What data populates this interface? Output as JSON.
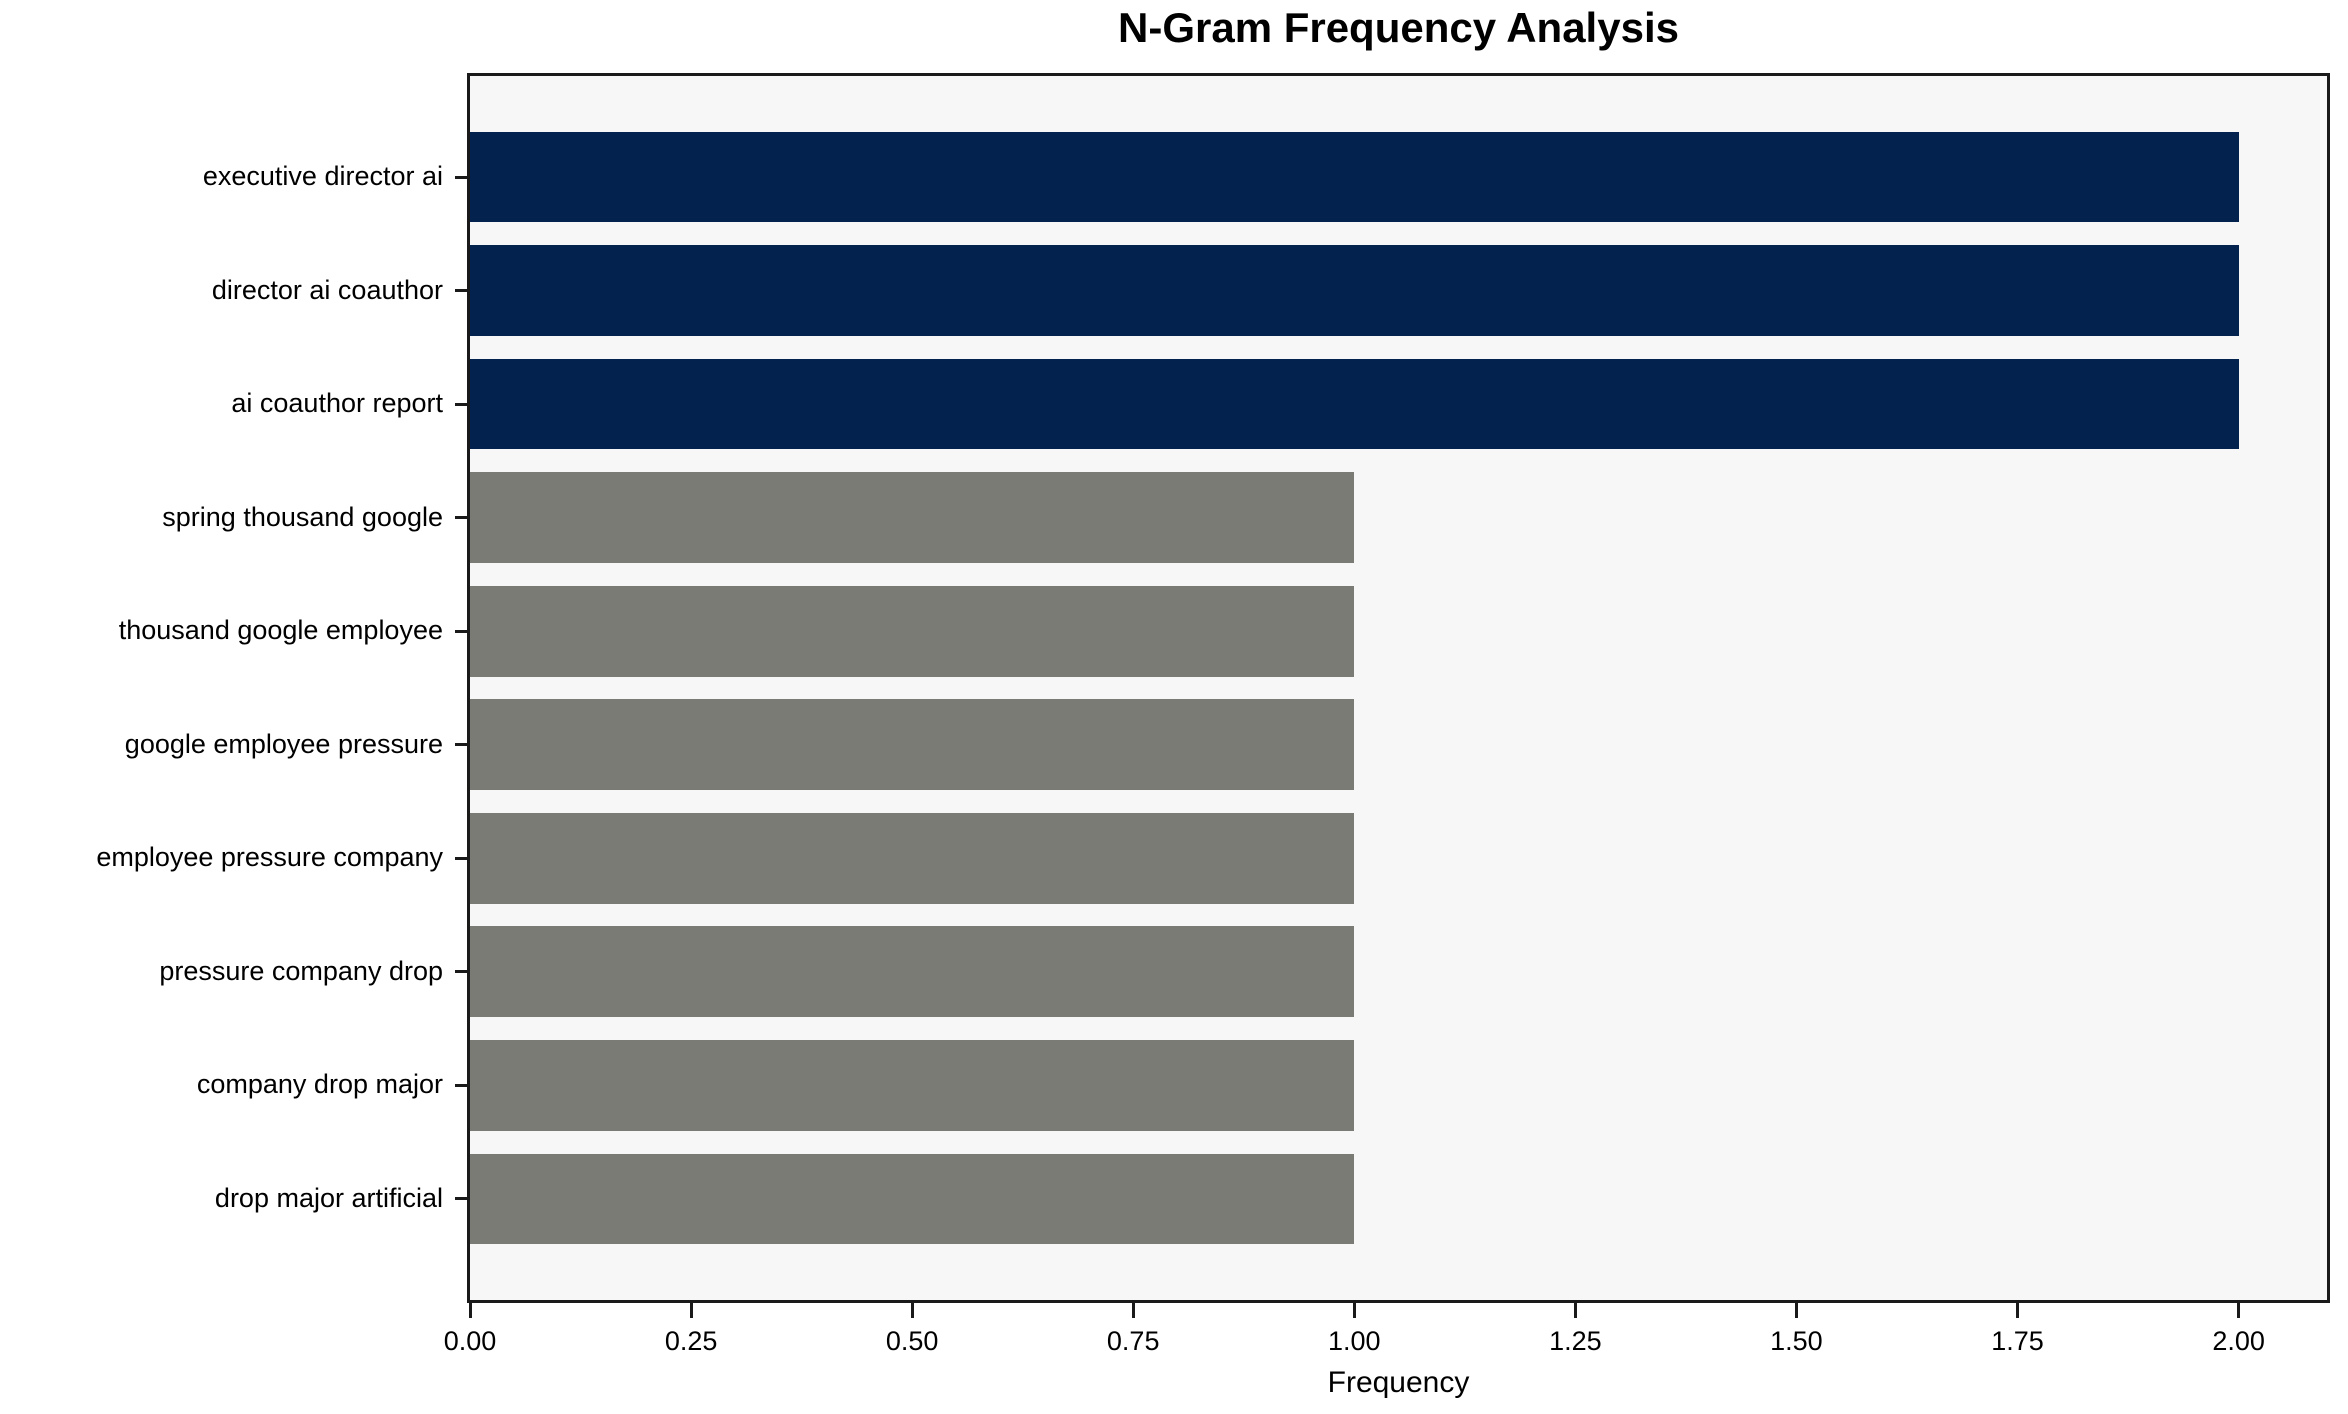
{
  "chart_data": {
    "type": "bar",
    "orientation": "horizontal",
    "title": "N-Gram Frequency Analysis",
    "xlabel": "Frequency",
    "ylabel": "",
    "categories": [
      "executive director ai",
      "director ai coauthor",
      "ai coauthor report",
      "spring thousand google",
      "thousand google employee",
      "google employee pressure",
      "employee pressure company",
      "pressure company drop",
      "company drop major",
      "drop major artificial"
    ],
    "values": [
      2,
      2,
      2,
      1,
      1,
      1,
      1,
      1,
      1,
      1
    ],
    "bar_colors": [
      "#03234e",
      "#03234e",
      "#03234e",
      "#7b7b76",
      "#7b7b76",
      "#7b7b76",
      "#7b7b76",
      "#7b7b76",
      "#7b7b76",
      "#7b7b76"
    ],
    "xlim": [
      0,
      2.1
    ],
    "xticks": [
      0,
      0.25,
      0.5,
      0.75,
      1.0,
      1.25,
      1.5,
      1.75,
      2.0
    ],
    "xtick_labels": [
      "0.00",
      "0.25",
      "0.50",
      "0.75",
      "1.00",
      "1.25",
      "1.50",
      "1.75",
      "2.00"
    ],
    "grid": false,
    "legend": false,
    "colors": {
      "highlight_bar": "#03234e",
      "default_bar": "#7b7b76",
      "plot_background": "#f7f7f7",
      "figure_background": "#ffffff",
      "axis": "#1a1a1a",
      "text": "#000000"
    }
  }
}
